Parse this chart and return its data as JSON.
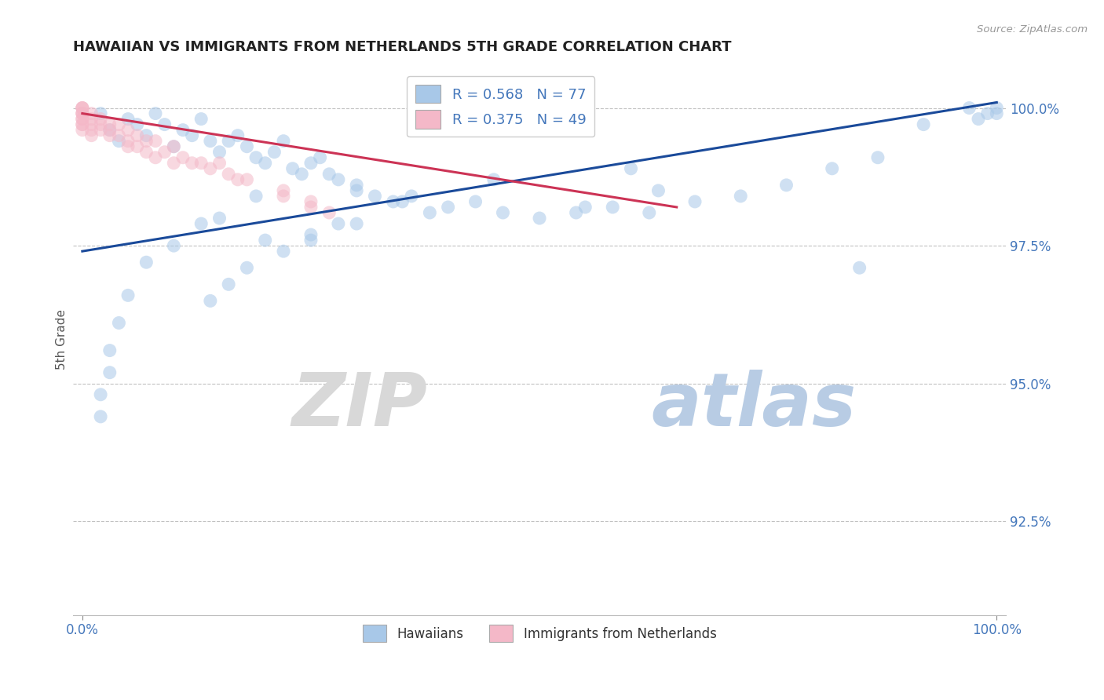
{
  "title": "HAWAIIAN VS IMMIGRANTS FROM NETHERLANDS 5TH GRADE CORRELATION CHART",
  "source_text": "Source: ZipAtlas.com",
  "ylabel": "5th Grade",
  "watermark_zip": "ZIP",
  "watermark_atlas": "atlas",
  "xlim": [
    -0.01,
    1.01
  ],
  "ylim": [
    0.908,
    1.008
  ],
  "yticks": [
    0.925,
    0.95,
    0.975,
    1.0
  ],
  "ytick_labels": [
    "92.5%",
    "95.0%",
    "97.5%",
    "100.0%"
  ],
  "xtick_labels": [
    "0.0%",
    "100.0%"
  ],
  "legend_r_blue": "R = 0.568",
  "legend_n_blue": "N = 77",
  "legend_r_pink": "R = 0.375",
  "legend_n_pink": "N = 49",
  "legend_label_blue": "Hawaiians",
  "legend_label_pink": "Immigrants from Netherlands",
  "blue_color": "#a8c8e8",
  "pink_color": "#f4b8c8",
  "line_blue_color": "#1a4a9a",
  "line_pink_color": "#cc3355",
  "title_color": "#222222",
  "axis_color": "#4477bb",
  "grid_color": "#bbbbbb",
  "background_color": "#ffffff",
  "blue_x": [
    0.02,
    0.03,
    0.04,
    0.05,
    0.06,
    0.07,
    0.08,
    0.09,
    0.1,
    0.11,
    0.12,
    0.13,
    0.14,
    0.15,
    0.16,
    0.17,
    0.18,
    0.19,
    0.2,
    0.21,
    0.22,
    0.23,
    0.24,
    0.25,
    0.26,
    0.27,
    0.28,
    0.3,
    0.32,
    0.34,
    0.36,
    0.38,
    0.4,
    0.43,
    0.46,
    0.5,
    0.54,
    0.58,
    0.62,
    0.67,
    0.72,
    0.77,
    0.82,
    0.87,
    0.92,
    0.97,
    1.0,
    1.0,
    0.99,
    0.98,
    0.55,
    0.63,
    0.35,
    0.28,
    0.19,
    0.15,
    0.1,
    0.07,
    0.05,
    0.04,
    0.03,
    0.03,
    0.02,
    0.02,
    0.13,
    0.2,
    0.25,
    0.3,
    0.25,
    0.22,
    0.18,
    0.16,
    0.14,
    0.3,
    0.45,
    0.6,
    0.85
  ],
  "blue_y": [
    0.999,
    0.996,
    0.994,
    0.998,
    0.997,
    0.995,
    0.999,
    0.997,
    0.993,
    0.996,
    0.995,
    0.998,
    0.994,
    0.992,
    0.994,
    0.995,
    0.993,
    0.991,
    0.99,
    0.992,
    0.994,
    0.989,
    0.988,
    0.99,
    0.991,
    0.988,
    0.987,
    0.985,
    0.984,
    0.983,
    0.984,
    0.981,
    0.982,
    0.983,
    0.981,
    0.98,
    0.981,
    0.982,
    0.981,
    0.983,
    0.984,
    0.986,
    0.989,
    0.991,
    0.997,
    1.0,
    1.0,
    0.999,
    0.999,
    0.998,
    0.982,
    0.985,
    0.983,
    0.979,
    0.984,
    0.98,
    0.975,
    0.972,
    0.966,
    0.961,
    0.956,
    0.952,
    0.948,
    0.944,
    0.979,
    0.976,
    0.977,
    0.979,
    0.976,
    0.974,
    0.971,
    0.968,
    0.965,
    0.986,
    0.987,
    0.989,
    0.971
  ],
  "pink_x": [
    0.0,
    0.0,
    0.0,
    0.0,
    0.0,
    0.0,
    0.0,
    0.0,
    0.0,
    0.0,
    0.0,
    0.01,
    0.01,
    0.01,
    0.01,
    0.01,
    0.02,
    0.02,
    0.02,
    0.03,
    0.03,
    0.03,
    0.04,
    0.04,
    0.05,
    0.05,
    0.05,
    0.06,
    0.06,
    0.07,
    0.07,
    0.08,
    0.08,
    0.09,
    0.1,
    0.1,
    0.11,
    0.12,
    0.13,
    0.14,
    0.15,
    0.16,
    0.17,
    0.18,
    0.22,
    0.22,
    0.25,
    0.25,
    0.27
  ],
  "pink_y": [
    1.0,
    1.0,
    1.0,
    0.999,
    0.999,
    0.999,
    0.998,
    0.998,
    0.997,
    0.997,
    0.996,
    0.999,
    0.998,
    0.997,
    0.996,
    0.995,
    0.998,
    0.997,
    0.996,
    0.997,
    0.996,
    0.995,
    0.997,
    0.995,
    0.996,
    0.994,
    0.993,
    0.995,
    0.993,
    0.994,
    0.992,
    0.994,
    0.991,
    0.992,
    0.993,
    0.99,
    0.991,
    0.99,
    0.99,
    0.989,
    0.99,
    0.988,
    0.987,
    0.987,
    0.985,
    0.984,
    0.983,
    0.982,
    0.981
  ],
  "blue_line_x0": 0.0,
  "blue_line_x1": 1.0,
  "blue_line_y0": 0.974,
  "blue_line_y1": 1.001,
  "pink_line_x0": 0.0,
  "pink_line_x1": 0.65,
  "pink_line_y0": 0.999,
  "pink_line_y1": 0.982
}
